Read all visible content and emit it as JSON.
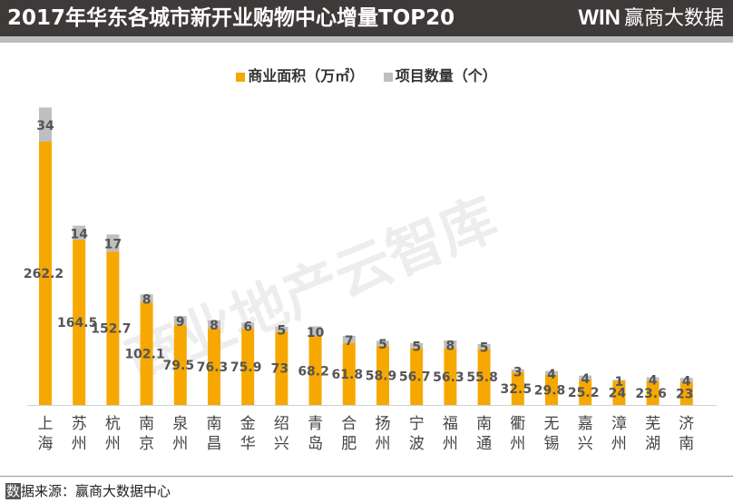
{
  "header": {
    "title": "2017年华东各城市新开业购物中心增量TOP20",
    "logo_text": "赢商大数据",
    "logo_mark": "WIN"
  },
  "watermark": "商业地产云智库",
  "footer": {
    "first_char": "数",
    "rest": "据来源：赢商大数据中心"
  },
  "colors": {
    "area": "#f7a800",
    "count": "#bfbfbf",
    "header_bg": "#3d3a39"
  },
  "chart_data": {
    "type": "bar",
    "stacked": true,
    "title": "2017年华东各城市新开业购物中心增量TOP20",
    "legend_position": "top",
    "grid": false,
    "categories": [
      "上海",
      "苏州",
      "杭州",
      "南京",
      "泉州",
      "南昌",
      "金华",
      "绍兴",
      "青岛",
      "合肥",
      "扬州",
      "宁波",
      "福州",
      "南通",
      "衢州",
      "无锡",
      "嘉兴",
      "漳州",
      "芜湖",
      "济南"
    ],
    "series": [
      {
        "name": "商业面积（万㎡）",
        "values": [
          262.2,
          164.5,
          152.7,
          102.1,
          79.5,
          76.3,
          75.9,
          73,
          68.2,
          61.8,
          58.9,
          56.7,
          56.3,
          55.8,
          32.5,
          29.8,
          25.2,
          24,
          23.6,
          23
        ]
      },
      {
        "name": "项目数量（个）",
        "values": [
          34,
          14,
          17,
          8,
          9,
          8,
          6,
          5,
          10,
          7,
          5,
          5,
          8,
          5,
          3,
          4,
          4,
          1,
          4,
          4
        ]
      }
    ]
  }
}
